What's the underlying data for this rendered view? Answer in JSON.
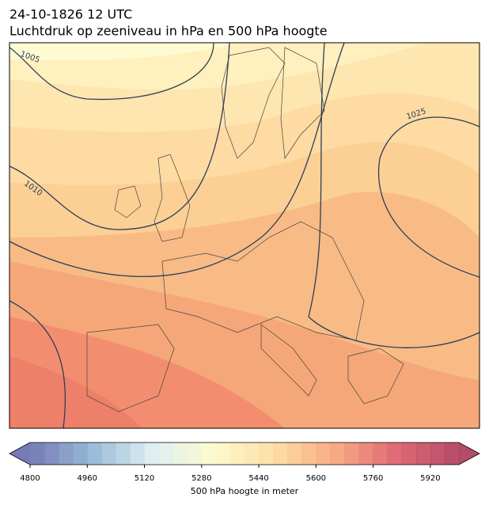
{
  "title": "24-10-1826 12 UTC",
  "subtitle": "Luchtdruk op zeeniveau in hPa en 500 hPa hoogte",
  "isobar_labels": [
    "1005",
    "1010",
    "1025"
  ],
  "colorbar": {
    "label": "500 hPa hoogte in meter",
    "range": [
      4800,
      6000
    ],
    "step": 40,
    "ticks": [
      4800,
      4960,
      5120,
      5280,
      5440,
      5600,
      5760,
      5920
    ],
    "colors": [
      "#5e63a8",
      "#85aed0",
      "#d9ecf1",
      "#fef9c5",
      "#fdd896",
      "#f79a6e",
      "#d8505c",
      "#a62d4f"
    ]
  }
}
